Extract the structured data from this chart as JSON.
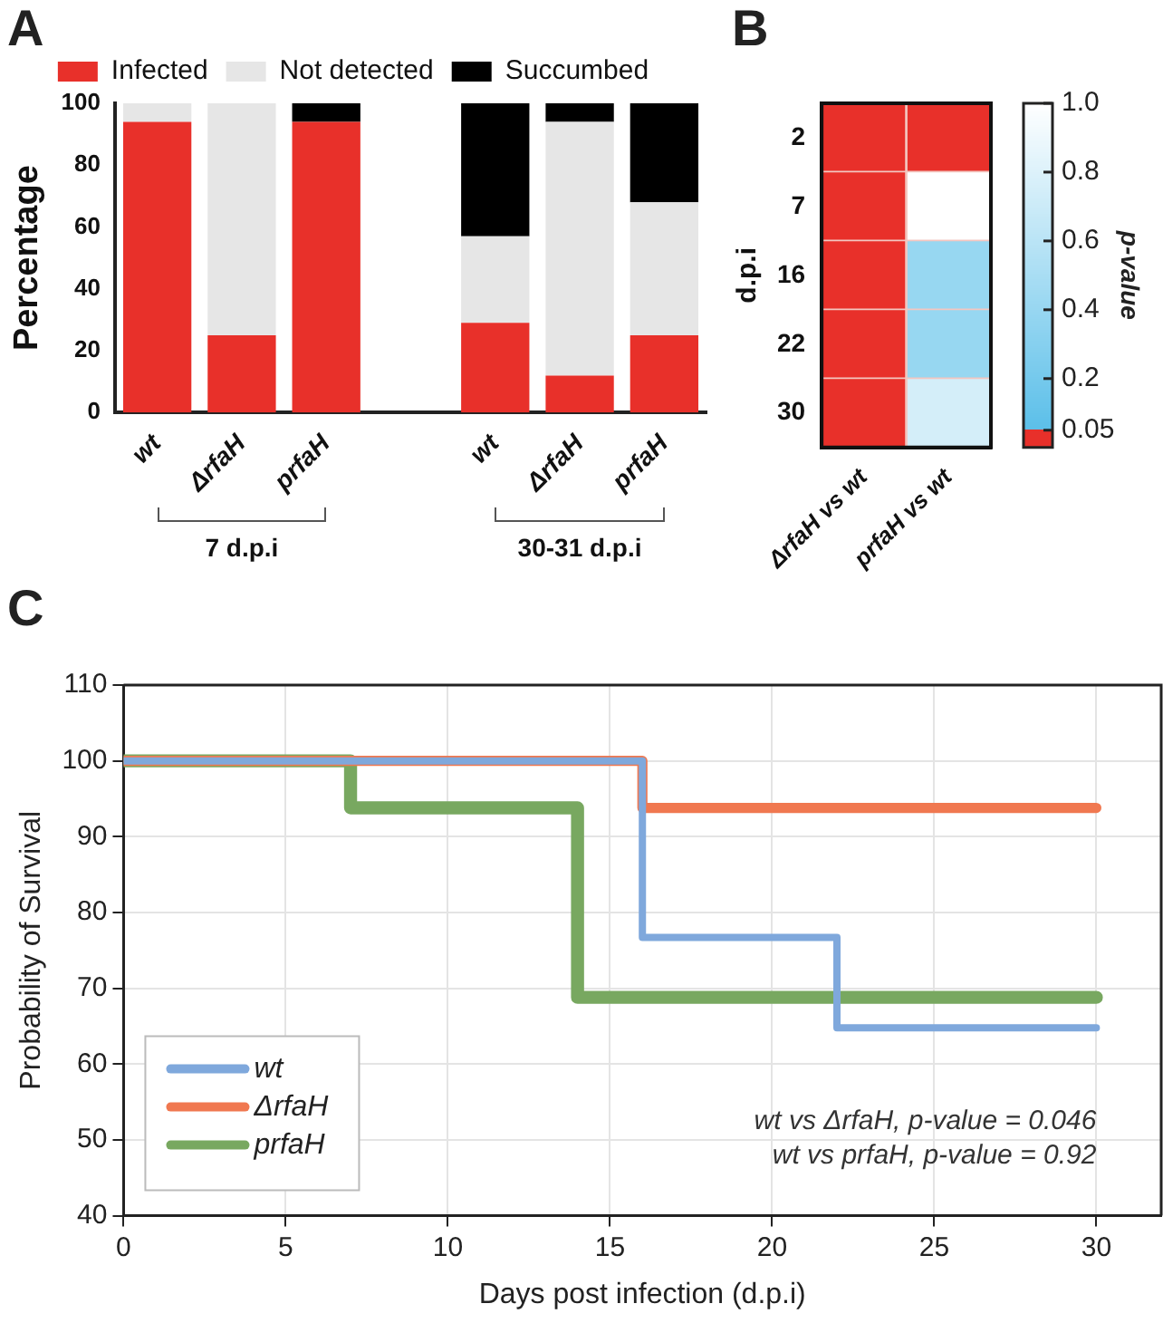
{
  "chart_data": [
    {
      "type": "bar",
      "title": "A",
      "ylabel": "Percentage",
      "stacked": true,
      "legend": "top",
      "categories": [
        "wt",
        "ΔrfaH",
        "prfaH",
        null,
        "wt",
        "ΔrfaH",
        "prfaH"
      ],
      "series": [
        {
          "name": "Infected",
          "color": "#e8302a",
          "values": [
            94,
            25,
            94,
            null,
            29,
            12,
            25
          ]
        },
        {
          "name": "Not detected",
          "color": "#e6e6e6",
          "values": [
            6,
            75,
            0,
            null,
            28,
            82,
            43
          ]
        },
        {
          "name": "Succumbed",
          "color": "#000000",
          "values": [
            0,
            0,
            6,
            null,
            43,
            6,
            32
          ]
        }
      ],
      "ylim": [
        0,
        100
      ],
      "yticks": [
        0,
        20,
        40,
        60,
        80,
        100
      ],
      "annotations": [
        "7 d.p.i",
        "30-31 d.p.i"
      ]
    },
    {
      "type": "heatmap",
      "title": "B",
      "ylabel": "d.p.i",
      "clabel": "p-value",
      "categories": [
        "ΔrfaH vs wt",
        "prfaH vs wt"
      ],
      "y_categories": [
        "2",
        "7",
        "16",
        "22",
        "30"
      ],
      "cells": [
        [
          0.03,
          0.03
        ],
        [
          0.03,
          1.0
        ],
        [
          0.03,
          0.4
        ],
        [
          0.03,
          0.4
        ],
        [
          0.03,
          0.75
        ]
      ],
      "clim": [
        0,
        1
      ],
      "cticks": [
        0.05,
        0.2,
        0.4,
        0.6,
        0.8,
        {
          "value": 1,
          "label": "1.0"
        }
      ]
    },
    {
      "type": "step",
      "title": "C",
      "xlabel": "Days post infection (d.p.i)",
      "ylabel": "Probability of Survival",
      "series": [
        {
          "name": "wt",
          "color": "#7fa8dc",
          "x": [
            0,
            16,
            22,
            30
          ],
          "values": [
            100,
            76.7,
            64.8,
            64.8
          ]
        },
        {
          "name": "ΔrfaH",
          "color": "#f07850",
          "x": [
            0,
            16,
            30
          ],
          "values": [
            100,
            93.8,
            93.8
          ]
        },
        {
          "name": "prfaH",
          "color": "#78a860",
          "x": [
            0,
            7,
            14,
            30
          ],
          "values": [
            100,
            93.8,
            68.8,
            68.8
          ]
        }
      ],
      "xlim": [
        0,
        32
      ],
      "xticks": [
        0,
        5,
        10,
        15,
        20,
        25,
        30
      ],
      "ylim": [
        40,
        110
      ],
      "yticks": [
        40,
        50,
        60,
        70,
        80,
        90,
        100,
        110
      ],
      "grid": true,
      "legend": "bottom left",
      "marker": "none",
      "line_style": "solid",
      "annotations": [
        "wt vs ΔrfaH, p-value = 0.046",
        "wt vs prfaH, p-value = 0.92"
      ]
    }
  ]
}
